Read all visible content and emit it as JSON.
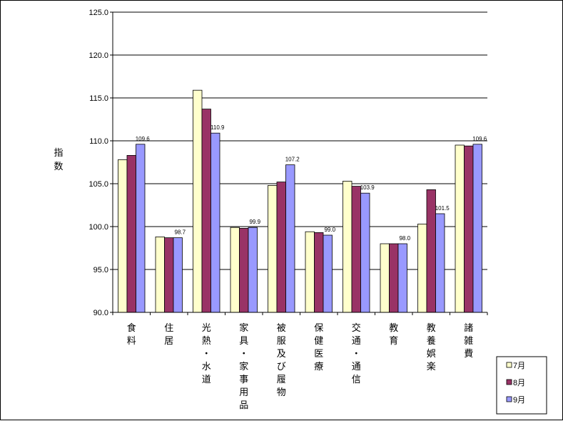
{
  "chart_data": {
    "type": "bar",
    "ylabel": "指数",
    "ylim": [
      90.0,
      125.0
    ],
    "ytick_step": 5,
    "grid": true,
    "legend_position": "bottom-right",
    "categories": [
      "食料",
      "住居",
      "光熱・水道",
      "家具・家事用品",
      "被服及び履物",
      "保健医療",
      "交通・通信",
      "教育",
      "教養娯楽",
      "諸雑費"
    ],
    "series": [
      {
        "name": "7月",
        "color": "#FFFFCC",
        "values": [
          107.8,
          98.8,
          115.9,
          99.9,
          104.8,
          99.4,
          105.3,
          98.0,
          100.3,
          109.5
        ]
      },
      {
        "name": "8月",
        "color": "#993366",
        "values": [
          108.3,
          98.7,
          113.7,
          99.8,
          105.2,
          99.3,
          104.7,
          98.0,
          104.3,
          109.4
        ]
      },
      {
        "name": "9月",
        "color": "#9999FF",
        "values": [
          109.6,
          98.7,
          110.9,
          99.9,
          107.2,
          99.0,
          103.9,
          98.0,
          101.5,
          109.6
        ]
      }
    ],
    "data_labels": [
      "109.6",
      "98.7",
      "110.9",
      "99.9",
      "107.2",
      "99.0",
      "103.9",
      "98.0",
      "101.5",
      "109.6"
    ],
    "data_label_series": "9月"
  }
}
